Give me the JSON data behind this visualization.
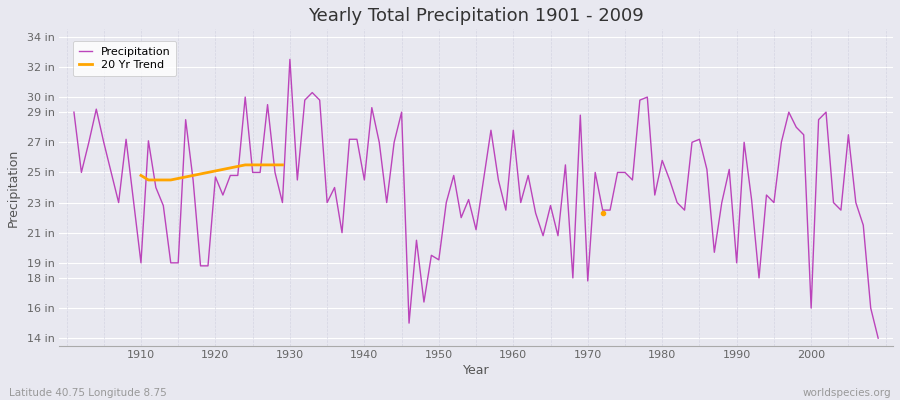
{
  "title": "Yearly Total Precipitation 1901 - 2009",
  "xlabel": "Year",
  "ylabel": "Precipitation",
  "lat_lon_label": "Latitude 40.75 Longitude 8.75",
  "watermark": "worldspecies.org",
  "line_color": "#bb44bb",
  "trend_color": "#ffa500",
  "bg_color": "#e8e8f0",
  "bg_color_top": "#d8d8e8",
  "bg_color_bottom": "#e8e8f0",
  "grid_color_h": "#ffffff",
  "grid_color_v": "#ccccdd",
  "years": [
    1901,
    1902,
    1903,
    1904,
    1905,
    1906,
    1907,
    1908,
    1909,
    1910,
    1911,
    1912,
    1913,
    1914,
    1915,
    1916,
    1917,
    1918,
    1919,
    1920,
    1921,
    1922,
    1923,
    1924,
    1925,
    1926,
    1927,
    1928,
    1929,
    1930,
    1931,
    1932,
    1933,
    1934,
    1935,
    1936,
    1937,
    1938,
    1939,
    1940,
    1941,
    1942,
    1943,
    1944,
    1945,
    1946,
    1947,
    1948,
    1949,
    1950,
    1951,
    1952,
    1953,
    1954,
    1955,
    1956,
    1957,
    1958,
    1959,
    1960,
    1961,
    1962,
    1963,
    1964,
    1965,
    1966,
    1967,
    1968,
    1969,
    1970,
    1971,
    1972,
    1973,
    1974,
    1975,
    1976,
    1977,
    1978,
    1979,
    1980,
    1981,
    1982,
    1983,
    1984,
    1985,
    1986,
    1987,
    1988,
    1989,
    1990,
    1991,
    1992,
    1993,
    1994,
    1995,
    1996,
    1997,
    1998,
    1999,
    2000,
    2001,
    2002,
    2003,
    2004,
    2005,
    2006,
    2007,
    2008,
    2009
  ],
  "precip_in": [
    29.0,
    25.0,
    27.0,
    29.2,
    27.0,
    25.0,
    23.0,
    27.2,
    23.1,
    19.0,
    27.1,
    24.0,
    22.8,
    19.0,
    19.0,
    28.5,
    24.5,
    18.8,
    18.8,
    24.7,
    23.5,
    24.8,
    24.8,
    30.0,
    25.0,
    25.0,
    29.5,
    25.0,
    23.0,
    32.5,
    24.5,
    29.8,
    30.3,
    29.8,
    23.0,
    24.0,
    21.0,
    27.2,
    27.2,
    24.5,
    29.3,
    27.0,
    23.0,
    27.0,
    29.0,
    15.0,
    20.5,
    16.4,
    19.5,
    19.2,
    23.0,
    24.8,
    22.0,
    23.2,
    21.2,
    24.5,
    27.8,
    24.5,
    22.5,
    27.8,
    23.0,
    24.8,
    22.3,
    20.8,
    22.8,
    20.8,
    25.5,
    18.0,
    28.8,
    17.8,
    25.0,
    22.5,
    22.5,
    25.0,
    25.0,
    24.5,
    29.8,
    30.0,
    23.5,
    25.8,
    24.5,
    23.0,
    22.5,
    27.0,
    27.2,
    25.2,
    19.7,
    23.0,
    25.2,
    19.0,
    27.0,
    23.2,
    18.0,
    23.5,
    23.0,
    27.0,
    29.0,
    28.0,
    27.5,
    16.0,
    28.5,
    29.0,
    23.0,
    22.5,
    27.5,
    23.0,
    21.5,
    16.0,
    14.0
  ],
  "trend_seg1_years": [
    1910,
    1911,
    1912,
    1913,
    1914,
    1915,
    1916,
    1917,
    1918,
    1919,
    1920,
    1921,
    1922,
    1923,
    1924,
    1925,
    1926,
    1927,
    1928,
    1929
  ],
  "trend_seg1_vals": [
    24.8,
    24.5,
    24.5,
    24.5,
    24.5,
    24.6,
    24.7,
    24.8,
    24.9,
    25.0,
    25.1,
    25.2,
    25.3,
    25.4,
    25.5,
    25.5,
    25.5,
    25.5,
    25.5,
    25.5
  ],
  "trend_dot_year": 1972,
  "trend_dot_val": 22.3,
  "yticks": [
    14,
    16,
    18,
    19,
    21,
    23,
    25,
    27,
    29,
    30,
    32,
    34
  ],
  "ytick_labels": [
    "14 in",
    "16 in",
    "18 in",
    "19 in",
    "21 in",
    "23 in",
    "25 in",
    "27 in",
    "29 in",
    "30 in",
    "32 in",
    "34 in"
  ],
  "ylim": [
    13.5,
    34.5
  ],
  "xlim": [
    1899,
    2011
  ]
}
